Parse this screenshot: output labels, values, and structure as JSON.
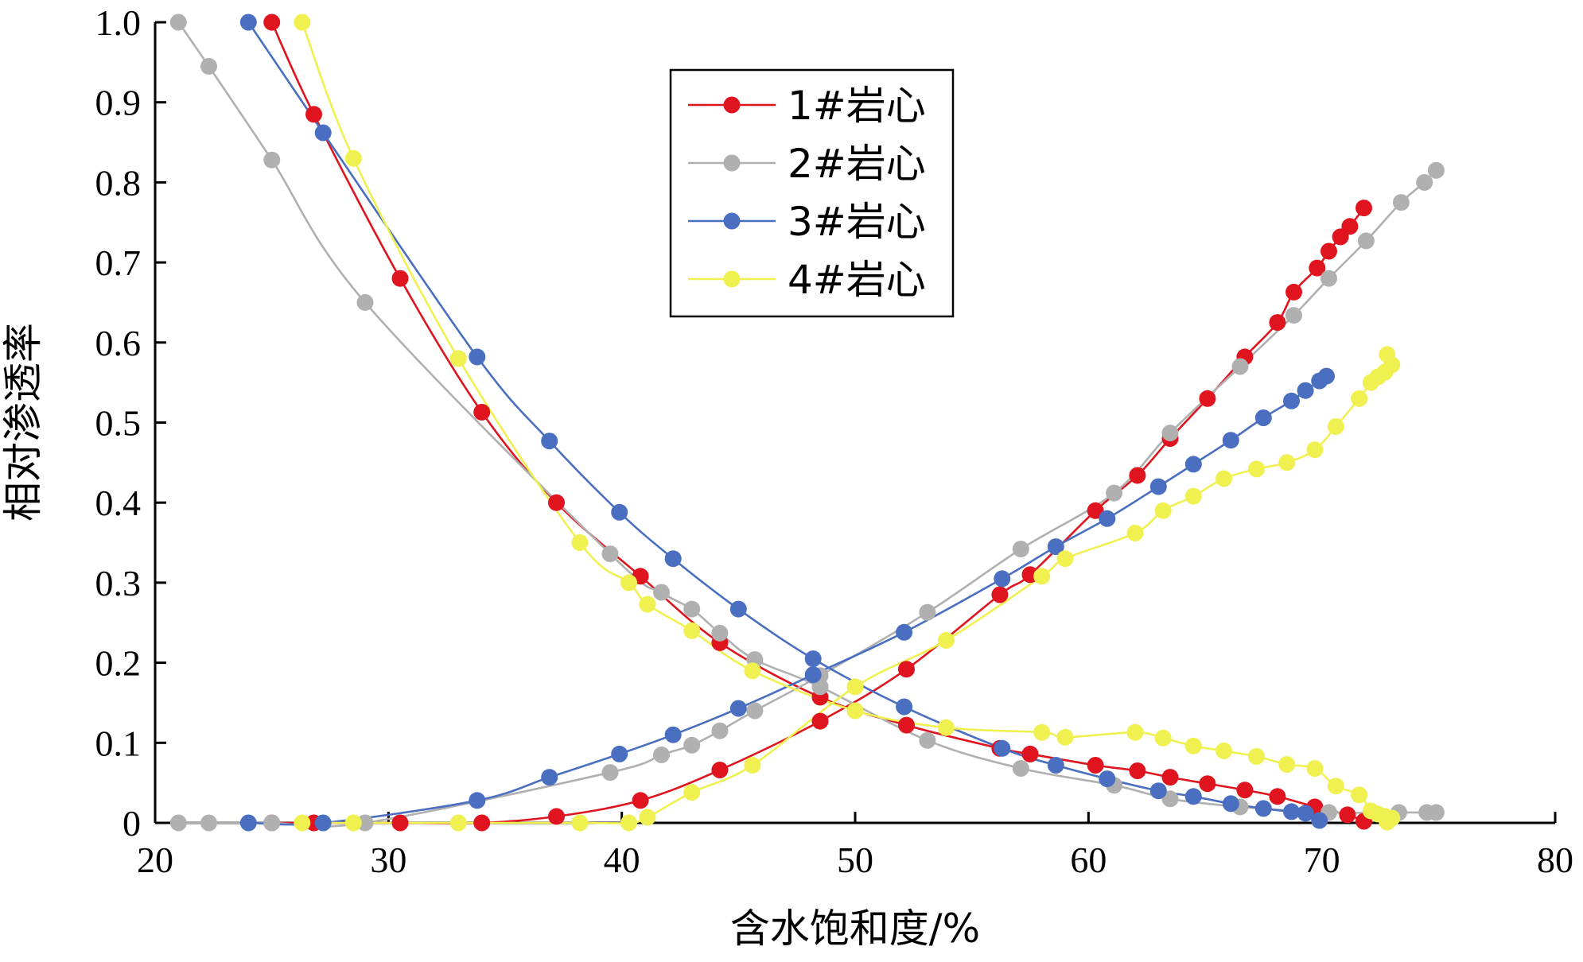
{
  "chart_data": {
    "type": "scatter",
    "xlabel": "含水饱和度/%",
    "ylabel": "相对渗透率",
    "xlim": [
      20,
      80
    ],
    "ylim": [
      0,
      1.0
    ],
    "x_ticks": [
      "20",
      "30",
      "40",
      "50",
      "60",
      "70",
      "80"
    ],
    "y_ticks": [
      "0",
      "0.1",
      "0.2",
      "0.3",
      "0.4",
      "0.5",
      "0.6",
      "0.7",
      "0.8",
      "0.9",
      "1.0"
    ],
    "grid": false,
    "legend_position": "top-center",
    "series": [
      {
        "name": "1#岩心",
        "color": "#e0141e",
        "kro": [
          [
            25.0,
            1.0
          ],
          [
            26.8,
            0.885
          ],
          [
            30.5,
            0.68
          ],
          [
            34.0,
            0.513
          ],
          [
            37.2,
            0.4
          ],
          [
            40.8,
            0.308
          ],
          [
            44.2,
            0.225
          ],
          [
            48.5,
            0.157
          ],
          [
            52.2,
            0.122
          ],
          [
            56.2,
            0.093
          ],
          [
            57.5,
            0.086
          ],
          [
            60.3,
            0.072
          ],
          [
            62.1,
            0.065
          ],
          [
            63.5,
            0.057
          ],
          [
            65.1,
            0.049
          ],
          [
            66.7,
            0.041
          ],
          [
            68.1,
            0.033
          ],
          [
            69.7,
            0.02
          ],
          [
            71.1,
            0.01
          ],
          [
            71.8,
            0.002
          ]
        ],
        "krw": [
          [
            25.0,
            0.0
          ],
          [
            26.8,
            0.0
          ],
          [
            30.5,
            0.0
          ],
          [
            34.0,
            0.0
          ],
          [
            37.2,
            0.008
          ],
          [
            40.8,
            0.028
          ],
          [
            44.2,
            0.066
          ],
          [
            48.5,
            0.127
          ],
          [
            52.2,
            0.192
          ],
          [
            56.2,
            0.285
          ],
          [
            57.5,
            0.31
          ],
          [
            60.3,
            0.39
          ],
          [
            62.1,
            0.434
          ],
          [
            63.5,
            0.48
          ],
          [
            65.1,
            0.53
          ],
          [
            66.7,
            0.582
          ],
          [
            68.1,
            0.625
          ],
          [
            68.8,
            0.663
          ],
          [
            69.8,
            0.693
          ],
          [
            70.3,
            0.714
          ],
          [
            70.8,
            0.732
          ],
          [
            71.2,
            0.745
          ],
          [
            71.8,
            0.768
          ]
        ]
      },
      {
        "name": "2#岩心",
        "color": "#b0b0b0",
        "kro": [
          [
            21.0,
            1.0
          ],
          [
            22.3,
            0.945
          ],
          [
            25.0,
            0.828
          ],
          [
            29.0,
            0.65
          ],
          [
            39.5,
            0.336
          ],
          [
            41.7,
            0.288
          ],
          [
            43.0,
            0.267
          ],
          [
            44.2,
            0.237
          ],
          [
            45.7,
            0.204
          ],
          [
            48.5,
            0.17
          ],
          [
            53.1,
            0.103
          ],
          [
            57.1,
            0.068
          ],
          [
            61.1,
            0.047
          ],
          [
            63.5,
            0.03
          ],
          [
            66.5,
            0.02
          ],
          [
            70.3,
            0.013
          ],
          [
            73.3,
            0.013
          ],
          [
            74.5,
            0.013
          ],
          [
            74.9,
            0.013
          ]
        ],
        "krw": [
          [
            21.0,
            0.0
          ],
          [
            22.3,
            0.0
          ],
          [
            25.0,
            0.0
          ],
          [
            29.0,
            0.0
          ],
          [
            39.5,
            0.063
          ],
          [
            41.7,
            0.085
          ],
          [
            43.0,
            0.097
          ],
          [
            44.2,
            0.115
          ],
          [
            45.7,
            0.14
          ],
          [
            48.5,
            0.184
          ],
          [
            53.1,
            0.263
          ],
          [
            57.1,
            0.342
          ],
          [
            61.1,
            0.412
          ],
          [
            63.5,
            0.487
          ],
          [
            66.5,
            0.57
          ],
          [
            68.8,
            0.634
          ],
          [
            70.3,
            0.68
          ],
          [
            71.9,
            0.727
          ],
          [
            73.4,
            0.775
          ],
          [
            74.4,
            0.8
          ],
          [
            74.9,
            0.815
          ]
        ]
      },
      {
        "name": "3#岩心",
        "color": "#4a6fc0",
        "kro": [
          [
            24.0,
            1.0
          ],
          [
            27.2,
            0.862
          ],
          [
            33.8,
            0.582
          ],
          [
            36.9,
            0.477
          ],
          [
            39.9,
            0.388
          ],
          [
            42.2,
            0.33
          ],
          [
            45.0,
            0.267
          ],
          [
            48.2,
            0.205
          ],
          [
            52.1,
            0.145
          ],
          [
            56.3,
            0.093
          ],
          [
            58.6,
            0.072
          ],
          [
            60.8,
            0.055
          ],
          [
            63.0,
            0.04
          ],
          [
            64.5,
            0.033
          ],
          [
            66.1,
            0.024
          ],
          [
            67.5,
            0.018
          ],
          [
            68.7,
            0.014
          ],
          [
            69.3,
            0.012
          ],
          [
            69.9,
            0.003
          ]
        ],
        "krw": [
          [
            24.0,
            0.0
          ],
          [
            27.2,
            0.0
          ],
          [
            33.8,
            0.028
          ],
          [
            36.9,
            0.057
          ],
          [
            39.9,
            0.086
          ],
          [
            42.2,
            0.11
          ],
          [
            45.0,
            0.143
          ],
          [
            48.2,
            0.185
          ],
          [
            52.1,
            0.238
          ],
          [
            56.3,
            0.305
          ],
          [
            58.6,
            0.345
          ],
          [
            60.8,
            0.38
          ],
          [
            63.0,
            0.42
          ],
          [
            64.5,
            0.448
          ],
          [
            66.1,
            0.478
          ],
          [
            67.5,
            0.506
          ],
          [
            68.7,
            0.527
          ],
          [
            69.3,
            0.54
          ],
          [
            69.9,
            0.552
          ],
          [
            70.2,
            0.558
          ]
        ]
      },
      {
        "name": "4#岩心",
        "color": "#f0f050",
        "kro": [
          [
            26.3,
            1.0
          ],
          [
            28.5,
            0.83
          ],
          [
            33.0,
            0.58
          ],
          [
            38.2,
            0.35
          ],
          [
            40.3,
            0.3
          ],
          [
            41.1,
            0.273
          ],
          [
            43.0,
            0.24
          ],
          [
            45.6,
            0.19
          ],
          [
            50.0,
            0.14
          ],
          [
            53.9,
            0.119
          ],
          [
            58.0,
            0.113
          ],
          [
            59.0,
            0.107
          ],
          [
            62.0,
            0.113
          ],
          [
            63.2,
            0.106
          ],
          [
            64.5,
            0.096
          ],
          [
            65.8,
            0.09
          ],
          [
            67.2,
            0.083
          ],
          [
            68.5,
            0.073
          ],
          [
            69.7,
            0.068
          ],
          [
            70.6,
            0.046
          ],
          [
            71.6,
            0.035
          ],
          [
            72.1,
            0.015
          ],
          [
            72.4,
            0.011
          ],
          [
            72.7,
            0.008
          ],
          [
            73.0,
            0.006
          ],
          [
            72.8,
            0.001
          ]
        ],
        "krw": [
          [
            26.3,
            0.0
          ],
          [
            28.5,
            0.0
          ],
          [
            33.0,
            0.0
          ],
          [
            38.2,
            0.0
          ],
          [
            40.3,
            0.0
          ],
          [
            41.1,
            0.007
          ],
          [
            43.0,
            0.038
          ],
          [
            45.6,
            0.072
          ],
          [
            50.0,
            0.17
          ],
          [
            53.9,
            0.228
          ],
          [
            58.0,
            0.308
          ],
          [
            59.0,
            0.33
          ],
          [
            62.0,
            0.362
          ],
          [
            63.2,
            0.39
          ],
          [
            64.5,
            0.408
          ],
          [
            65.8,
            0.43
          ],
          [
            67.2,
            0.442
          ],
          [
            68.5,
            0.45
          ],
          [
            69.7,
            0.466
          ],
          [
            70.6,
            0.495
          ],
          [
            71.6,
            0.53
          ],
          [
            72.1,
            0.55
          ],
          [
            72.4,
            0.557
          ],
          [
            72.7,
            0.563
          ],
          [
            73.0,
            0.572
          ],
          [
            72.8,
            0.585
          ]
        ]
      }
    ]
  }
}
